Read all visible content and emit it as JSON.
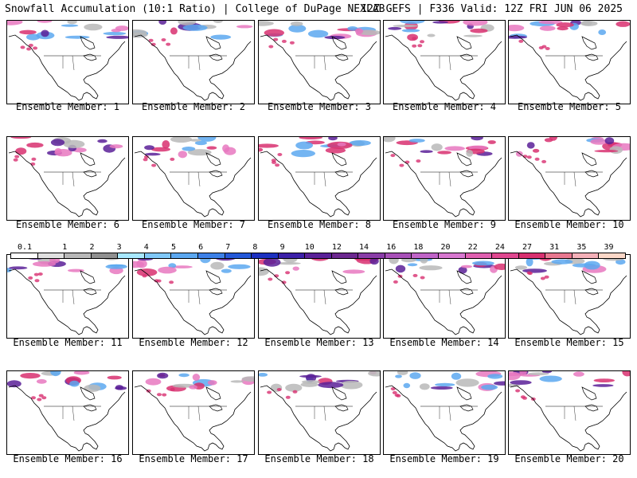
{
  "header": {
    "left": "Snowfall Accumulation (10:1 Ratio) | College of DuPage NEXLAB",
    "right": "12Z GEFS | F336 Valid: 12Z FRI JUN 06 2025"
  },
  "members": [
    {
      "label": "Ensemble Member: 1"
    },
    {
      "label": "Ensemble Member: 2"
    },
    {
      "label": "Ensemble Member: 3"
    },
    {
      "label": "Ensemble Member: 4"
    },
    {
      "label": "Ensemble Member: 5"
    },
    {
      "label": "Ensemble Member: 6"
    },
    {
      "label": "Ensemble Member: 7"
    },
    {
      "label": "Ensemble Member: 8"
    },
    {
      "label": "Ensemble Member: 9"
    },
    {
      "label": "Ensemble Member: 10"
    },
    {
      "label": "Ensemble Member: 11"
    },
    {
      "label": "Ensemble Member: 12"
    },
    {
      "label": "Ensemble Member: 13"
    },
    {
      "label": "Ensemble Member: 14"
    },
    {
      "label": "Ensemble Member: 15"
    },
    {
      "label": "Ensemble Member: 16"
    },
    {
      "label": "Ensemble Member: 17"
    },
    {
      "label": "Ensemble Member: 18"
    },
    {
      "label": "Ensemble Member: 19"
    },
    {
      "label": "Ensemble Member: 20"
    }
  ],
  "colorbar": {
    "labels": [
      "0.1",
      "1",
      "2",
      "3",
      "4",
      "5",
      "6",
      "7",
      "8",
      "9",
      "10",
      "12",
      "14",
      "16",
      "18",
      "20",
      "22",
      "24",
      "27",
      "31",
      "35",
      "39"
    ],
    "colors": [
      "#ffffff",
      "#e0e0e0",
      "#b8b8b8",
      "#909090",
      "#a8e8ff",
      "#80c8f8",
      "#5ca8f0",
      "#3c80e8",
      "#2458d8",
      "#1c30c0",
      "#3c20a8",
      "#5a2098",
      "#6c2890",
      "#8a3ca8",
      "#a850b8",
      "#c064c8",
      "#d878d0",
      "#e060b0",
      "#e04890",
      "#d83070",
      "#e87890",
      "#f4b0b8",
      "#fcd8c8"
    ]
  },
  "colors": {
    "snow_light": "#b8b8b8",
    "snow_blue": "#5ca8f0",
    "snow_purple": "#5a2098",
    "snow_magenta": "#d83070",
    "snow_pink": "#e878c0"
  }
}
